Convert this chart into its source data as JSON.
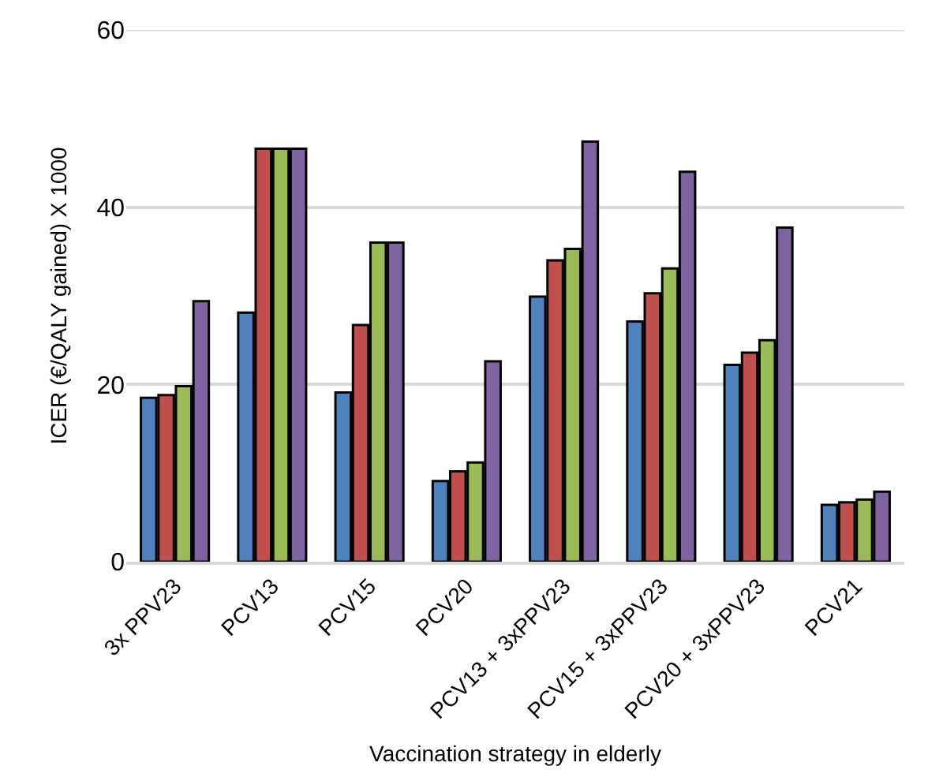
{
  "chart_data": {
    "type": "bar",
    "xlabel": "Vaccination strategy in elderly",
    "ylabel": "ICER (€/QALY gained) X 1000",
    "categories": [
      "3x PPV23",
      "PCV13",
      "PCV15",
      "PCV20",
      "PCV13 + 3xPPV23",
      "PCV15 + 3xPPV23",
      "PCV20 + 3xPPV23",
      "PCV21"
    ],
    "series": [
      {
        "color": "#4f81bd",
        "values": [
          18.5,
          28.1,
          19.1,
          9.1,
          29.9,
          27.1,
          22.2,
          6.4
        ]
      },
      {
        "color": "#c0504d",
        "values": [
          18.8,
          46.6,
          26.7,
          10.2,
          34.0,
          30.3,
          23.6,
          6.7
        ]
      },
      {
        "color": "#9bbb59",
        "values": [
          19.8,
          46.6,
          36.0,
          11.2,
          35.3,
          33.1,
          25.0,
          7.0
        ]
      },
      {
        "color": "#8064a2",
        "values": [
          29.4,
          46.6,
          36.0,
          22.6,
          47.4,
          44.0,
          37.7,
          7.9
        ]
      }
    ],
    "ylim": [
      0,
      60
    ],
    "yticks": [
      0,
      20,
      40,
      60
    ],
    "grid": "y"
  }
}
